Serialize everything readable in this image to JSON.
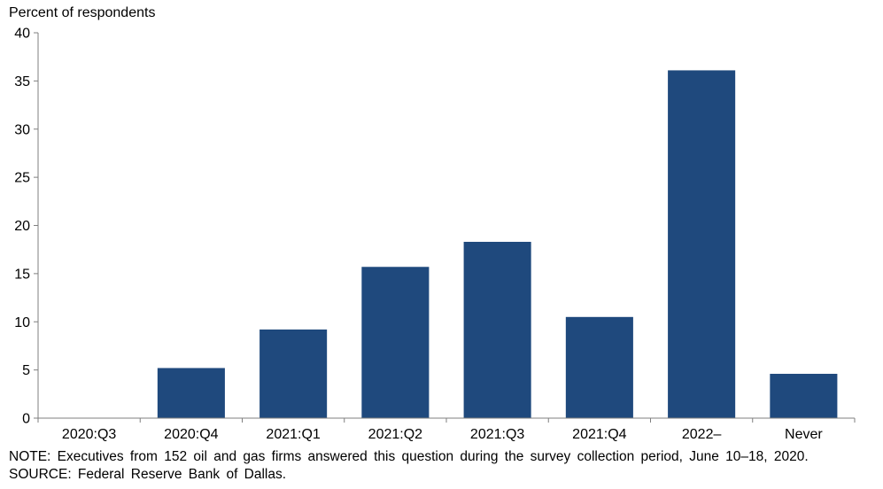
{
  "chart_data": {
    "type": "bar",
    "ylabel": "Percent of respondents",
    "categories": [
      "2020:Q3",
      "2020:Q4",
      "2021:Q1",
      "2021:Q2",
      "2021:Q3",
      "2021:Q4",
      "2022–",
      "Never"
    ],
    "values": [
      0,
      5.2,
      9.2,
      15.7,
      18.3,
      10.5,
      36.1,
      4.6
    ],
    "ylim": [
      0,
      40
    ],
    "yticks": [
      0,
      5,
      10,
      15,
      20,
      25,
      30,
      35,
      40
    ],
    "bar_color": "#1f497d",
    "grid": false,
    "legend": "none"
  },
  "notes": {
    "note": "NOTE: Executives from 152 oil and gas firms answered this question during the survey collection period, June 10–18, 2020.",
    "source": "SOURCE: Federal Reserve Bank of Dallas."
  }
}
